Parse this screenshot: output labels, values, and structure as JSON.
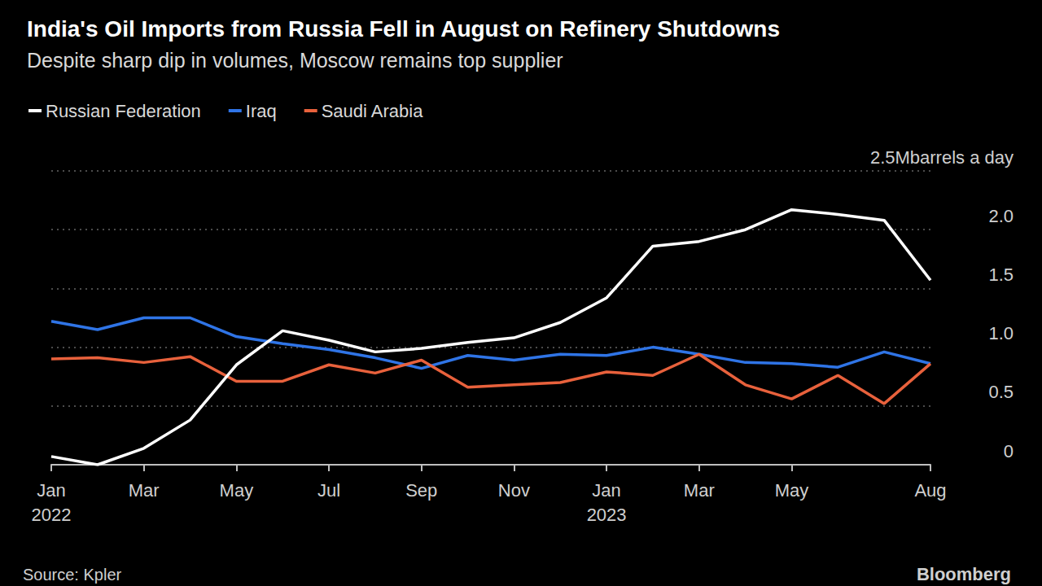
{
  "chart_data": {
    "type": "line",
    "title": "India's Oil Imports from Russia Fell in August on Refinery Shutdowns",
    "subtitle": "Despite sharp dip in volumes, Moscow remains top supplier",
    "categories": [
      "Jan\n2022",
      null,
      "Mar",
      null,
      "May",
      null,
      "Jul",
      null,
      "Sep",
      null,
      "Nov",
      null,
      "Jan\n2023",
      null,
      "Mar",
      null,
      "May",
      null,
      null,
      "Aug"
    ],
    "series": [
      {
        "name": "Russian Federation",
        "color": "#ffffff",
        "values": [
          0.07,
          0.0,
          0.14,
          0.38,
          0.85,
          1.14,
          1.06,
          0.96,
          0.99,
          1.04,
          1.08,
          1.21,
          1.42,
          1.86,
          1.9,
          2.0,
          2.17,
          2.13,
          2.08,
          1.57
        ]
      },
      {
        "name": "Iraq",
        "color": "#2f74e6",
        "values": [
          1.22,
          1.15,
          1.25,
          1.25,
          1.09,
          1.03,
          0.98,
          0.91,
          0.82,
          0.93,
          0.89,
          0.94,
          0.93,
          1.0,
          0.94,
          0.87,
          0.86,
          0.83,
          0.96,
          0.86
        ]
      },
      {
        "name": "Saudi Arabia",
        "color": "#e8613c",
        "values": [
          0.9,
          0.91,
          0.87,
          0.92,
          0.71,
          0.71,
          0.85,
          0.78,
          0.89,
          0.66,
          0.68,
          0.7,
          0.79,
          0.76,
          0.94,
          0.68,
          0.56,
          0.76,
          0.52,
          0.86
        ]
      }
    ],
    "ylim": [
      0,
      2.5
    ],
    "yticks": [
      0,
      {
        "value": 0.5,
        "label": "0.5"
      },
      {
        "value": 1,
        "label": "1.0"
      },
      {
        "value": 1.5,
        "label": "1.5"
      },
      {
        "value": 2,
        "label": "2.0"
      },
      {
        "value": 2.5,
        "label": "2.5Mbarrels a day"
      }
    ],
    "grid": true,
    "legend": "top-left",
    "annotations": [
      "Source: Kpler",
      "Bloomberg"
    ]
  }
}
